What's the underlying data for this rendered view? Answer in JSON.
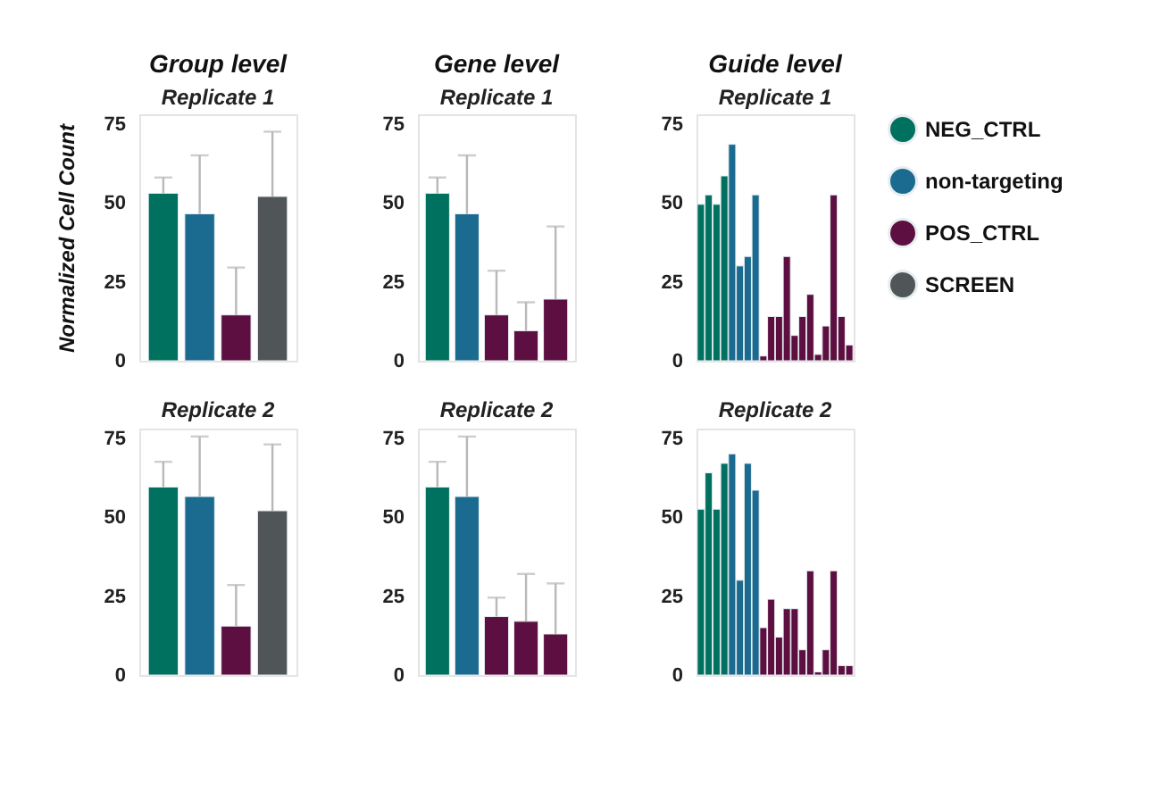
{
  "chart_data": [
    {
      "type": "bar",
      "title": "Group level",
      "subtitle": "Replicate 1",
      "ylabel": "Normalized Cell Count",
      "categories": [
        null,
        null,
        null,
        null
      ],
      "ylim": [
        0,
        78
      ],
      "yticks": [
        0,
        25,
        50,
        75
      ],
      "tick_labels": "y",
      "stacked": true,
      "legend": "right",
      "series": [
        {
          "name": "NEG_CTRL",
          "color": "#00705f",
          "values": [
            53,
            null,
            null,
            null
          ],
          "errors": [
            [
              53,
              58
            ],
            null,
            null,
            null
          ]
        },
        {
          "name": "non-targeting",
          "color": "#1b6a8f",
          "values": [
            null,
            46.5,
            null,
            null
          ],
          "errors": [
            null,
            [
              46.5,
              65
            ],
            null,
            null
          ]
        },
        {
          "name": "POS_CTRL",
          "color": "#5c0f40",
          "values": [
            null,
            null,
            14.5,
            null
          ],
          "errors": [
            null,
            null,
            [
              14.5,
              29.5
            ],
            null
          ]
        },
        {
          "name": "SCREEN",
          "color": "#505558",
          "values": [
            null,
            null,
            null,
            52
          ],
          "errors": [
            null,
            null,
            null,
            [
              52,
              72.5
            ]
          ]
        }
      ]
    },
    {
      "type": "bar",
      "title": "Gene level",
      "subtitle": "Replicate 1",
      "categories": [
        null,
        null,
        null,
        null,
        null
      ],
      "ylim": [
        0,
        78
      ],
      "yticks": [
        0,
        25,
        50,
        75
      ],
      "tick_labels": "y",
      "stacked": true,
      "series": [
        {
          "color": "#00705f",
          "values": [
            53,
            null,
            null,
            null,
            null
          ],
          "errors": [
            [
              53,
              58
            ],
            null,
            null,
            null,
            null
          ]
        },
        {
          "color": "#1b6a8f",
          "values": [
            null,
            46.5,
            null,
            null,
            null
          ],
          "errors": [
            null,
            [
              46.5,
              65
            ],
            null,
            null,
            null
          ]
        },
        {
          "color": "#5c0f40",
          "values": [
            null,
            null,
            14.5,
            9.5,
            19.5
          ],
          "errors": [
            null,
            null,
            [
              14.5,
              28.5
            ],
            [
              9.5,
              18.5
            ],
            [
              19.5,
              42.5
            ]
          ]
        }
      ]
    },
    {
      "type": "bar",
      "title": "Guide level",
      "subtitle": "Replicate 1",
      "categories": [
        null,
        null,
        null,
        null,
        null,
        null,
        null,
        null,
        null,
        null,
        null,
        null,
        null,
        null,
        null,
        null,
        null,
        null,
        null,
        null
      ],
      "ylim": [
        0,
        78
      ],
      "yticks": [
        0,
        25,
        50,
        75
      ],
      "tick_labels": "y",
      "stacked": true,
      "series": [
        {
          "color": "#00705f",
          "values": [
            49.5,
            52.5,
            49.5,
            58.5,
            null,
            null,
            null,
            null,
            null,
            null,
            null,
            null,
            null,
            null,
            null,
            null,
            null,
            null,
            null,
            null
          ]
        },
        {
          "color": "#1b6a8f",
          "values": [
            null,
            null,
            null,
            null,
            68.5,
            30,
            33,
            52.5,
            null,
            null,
            null,
            null,
            null,
            null,
            null,
            null,
            null,
            null,
            null,
            null
          ]
        },
        {
          "color": "#5c0f40",
          "values": [
            null,
            null,
            null,
            null,
            null,
            null,
            null,
            null,
            1.5,
            14,
            14,
            33,
            8,
            14,
            21,
            2,
            11,
            52.5,
            14,
            5
          ]
        }
      ]
    },
    {
      "type": "bar",
      "subtitle": "Replicate 2",
      "categories": [
        null,
        null,
        null,
        null
      ],
      "ylim": [
        0,
        78
      ],
      "yticks": [
        0,
        25,
        50,
        75
      ],
      "tick_labels": "y",
      "stacked": true,
      "series": [
        {
          "color": "#00705f",
          "values": [
            59.5,
            null,
            null,
            null
          ],
          "errors": [
            [
              59.5,
              67.5
            ],
            null,
            null,
            null
          ]
        },
        {
          "color": "#1b6a8f",
          "values": [
            null,
            56.5,
            null,
            null
          ],
          "errors": [
            null,
            [
              56.5,
              75.5
            ],
            null,
            null
          ]
        },
        {
          "color": "#5c0f40",
          "values": [
            null,
            null,
            15.5,
            null
          ],
          "errors": [
            null,
            null,
            [
              15.5,
              28.5
            ],
            null
          ]
        },
        {
          "color": "#505558",
          "values": [
            null,
            null,
            null,
            52
          ],
          "errors": [
            null,
            null,
            null,
            [
              52,
              73
            ]
          ]
        }
      ]
    },
    {
      "type": "bar",
      "subtitle": "Replicate 2",
      "categories": [
        null,
        null,
        null,
        null,
        null
      ],
      "ylim": [
        0,
        78
      ],
      "yticks": [
        0,
        25,
        50,
        75
      ],
      "tick_labels": "y",
      "stacked": true,
      "series": [
        {
          "color": "#00705f",
          "values": [
            59.5,
            null,
            null,
            null,
            null
          ],
          "errors": [
            [
              59.5,
              67.5
            ],
            null,
            null,
            null,
            null
          ]
        },
        {
          "color": "#1b6a8f",
          "values": [
            null,
            56.5,
            null,
            null,
            null
          ],
          "errors": [
            null,
            [
              56.5,
              75.5
            ],
            null,
            null,
            null
          ]
        },
        {
          "color": "#5c0f40",
          "values": [
            null,
            null,
            18.5,
            17,
            13
          ],
          "errors": [
            null,
            null,
            [
              18.5,
              24.5
            ],
            [
              17,
              32
            ],
            [
              13,
              29
            ]
          ]
        }
      ]
    },
    {
      "type": "bar",
      "subtitle": "Replicate 2",
      "categories": [
        null,
        null,
        null,
        null,
        null,
        null,
        null,
        null,
        null,
        null,
        null,
        null,
        null,
        null,
        null,
        null,
        null,
        null,
        null,
        null
      ],
      "ylim": [
        0,
        78
      ],
      "yticks": [
        0,
        25,
        50,
        75
      ],
      "tick_labels": "y",
      "stacked": true,
      "series": [
        {
          "color": "#00705f",
          "values": [
            52.5,
            64,
            52.5,
            67,
            null,
            null,
            null,
            null,
            null,
            null,
            null,
            null,
            null,
            null,
            null,
            null,
            null,
            null,
            null,
            null
          ]
        },
        {
          "color": "#1b6a8f",
          "values": [
            null,
            null,
            null,
            null,
            70,
            30,
            67,
            58.5,
            null,
            null,
            null,
            null,
            null,
            null,
            null,
            null,
            null,
            null,
            null,
            null
          ]
        },
        {
          "color": "#5c0f40",
          "values": [
            null,
            null,
            null,
            null,
            null,
            null,
            null,
            null,
            15,
            24,
            12,
            21,
            21,
            8,
            33,
            1,
            8,
            33,
            3,
            3
          ]
        }
      ]
    }
  ]
}
